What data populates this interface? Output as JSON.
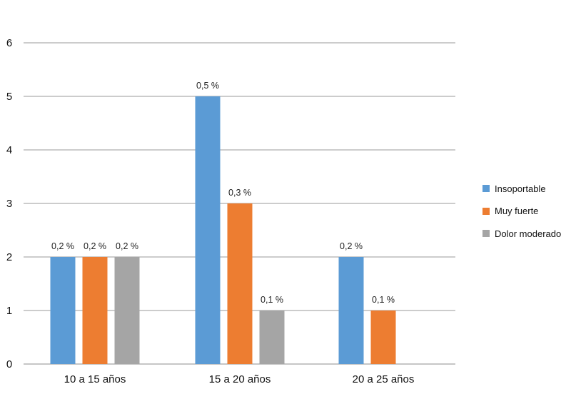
{
  "chart_data": {
    "type": "bar",
    "title": "",
    "xlabel": "",
    "ylabel": "",
    "ylim": [
      0,
      6
    ],
    "yticks": [
      0,
      1,
      2,
      3,
      4,
      5,
      6
    ],
    "grid": true,
    "legend_position": "right",
    "categories": [
      "10 a 15 años",
      "15 a 20 años",
      "20 a 25 años"
    ],
    "series": [
      {
        "name": "Insoportable",
        "color": "#5B9BD5",
        "values": [
          2,
          5,
          2
        ],
        "labels": [
          "0,2 %",
          "0,5 %",
          "0,2 %"
        ]
      },
      {
        "name": "Muy fuerte",
        "color": "#ED7D31",
        "values": [
          2,
          3,
          1
        ],
        "labels": [
          "0,2 %",
          "0,3 %",
          "0,1 %"
        ]
      },
      {
        "name": "Dolor moderado",
        "color": "#A5A5A5",
        "values": [
          2,
          1,
          null
        ],
        "labels": [
          "0,2 %",
          "0,1 %",
          null
        ]
      }
    ]
  }
}
